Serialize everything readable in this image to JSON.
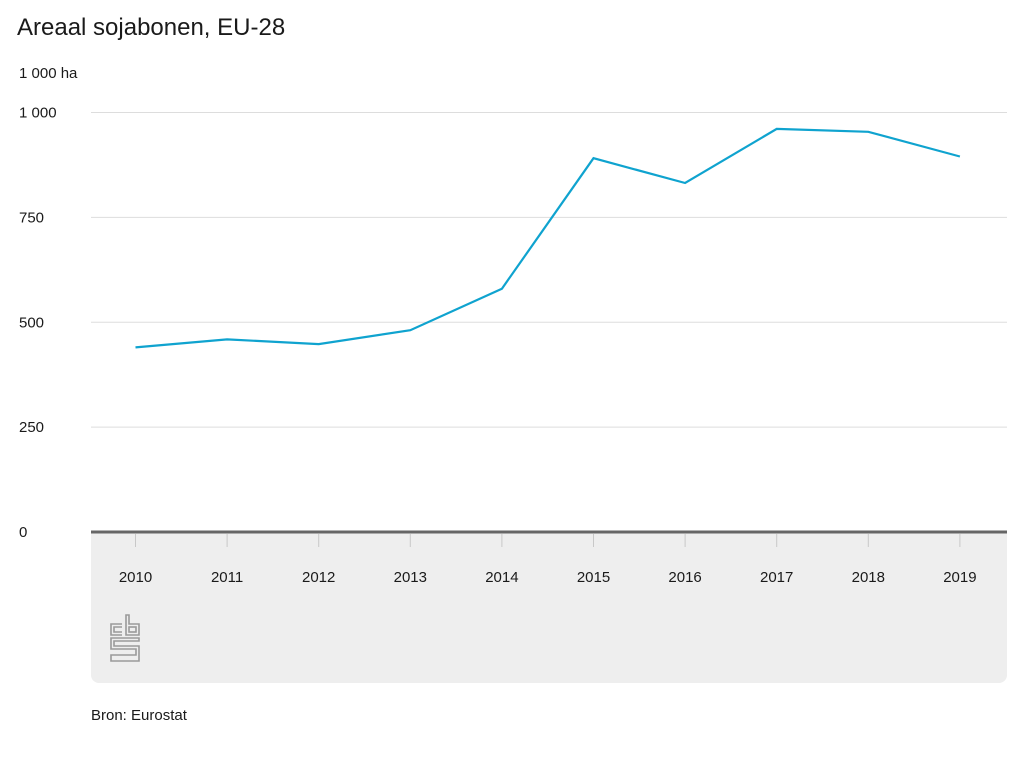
{
  "header": {
    "title": "Areaal sojabonen, EU-28",
    "unit": "1 000 ha"
  },
  "footer": {
    "source": "Bron: Eurostat",
    "logo": "cbs-logo-icon"
  },
  "colors": {
    "line": "#0fa3cf",
    "grid": "#dddddd",
    "axis": "#666666",
    "panel": "#eeeeee"
  },
  "chart_data": {
    "type": "line",
    "title": "Areaal sojabonen, EU-28",
    "ylabel": "1 000 ha",
    "xlabel": "",
    "x": [
      "2010",
      "2011",
      "2012",
      "2013",
      "2014",
      "2015",
      "2016",
      "2017",
      "2018",
      "2019"
    ],
    "series": [
      {
        "name": "Areaal sojabonen",
        "values": [
          440,
          459,
          448,
          481,
          580,
          891,
          832,
          961,
          954,
          895
        ]
      }
    ],
    "ylim": [
      0,
      1000
    ],
    "yticks": [
      0,
      250,
      500,
      750,
      1000
    ],
    "ytick_labels": [
      "0",
      "250",
      "500",
      "750",
      "1 000"
    ],
    "grid": true,
    "legend": "none"
  }
}
